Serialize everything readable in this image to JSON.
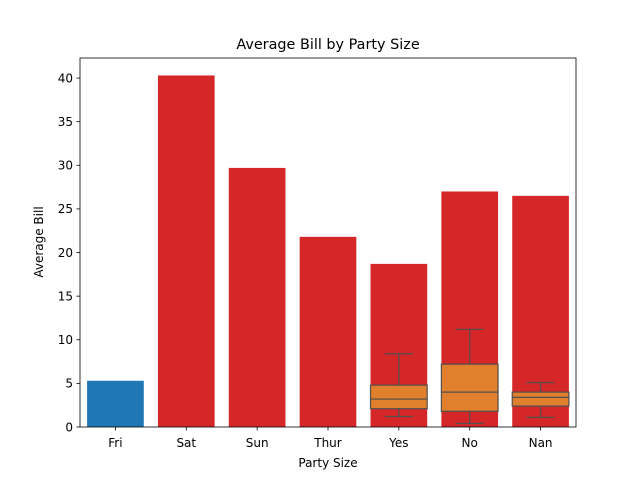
{
  "chart_data": {
    "type": "bar",
    "title": "Average Bill by Party Size",
    "xlabel": "Party Size",
    "ylabel": "Average Bill",
    "categories": [
      "Fri",
      "Sat",
      "Sun",
      "Thur",
      "Yes",
      "No",
      "Nan"
    ],
    "bars": [
      {
        "category": "Fri",
        "value": 5.3,
        "color": "#1f77b4"
      },
      {
        "category": "Sat",
        "value": 40.3,
        "color": "#d62728"
      },
      {
        "category": "Sun",
        "value": 29.7,
        "color": "#d62728"
      },
      {
        "category": "Thur",
        "value": 21.8,
        "color": "#d62728"
      },
      {
        "category": "Yes",
        "value": 18.7,
        "color": "#d62728"
      },
      {
        "category": "No",
        "value": 27.0,
        "color": "#d62728"
      },
      {
        "category": "Nan",
        "value": 26.5,
        "color": "#d62728"
      }
    ],
    "boxplots": [
      {
        "category": "Yes",
        "whisker_low": 1.2,
        "q1": 2.1,
        "median": 3.2,
        "q3": 4.8,
        "whisker_high": 8.4,
        "color": "#e07f2c"
      },
      {
        "category": "No",
        "whisker_low": 0.4,
        "q1": 1.8,
        "median": 4.0,
        "q3": 7.2,
        "whisker_high": 11.2,
        "color": "#e07f2c"
      },
      {
        "category": "Nan",
        "whisker_low": 1.1,
        "q1": 2.4,
        "median": 3.4,
        "q3": 4.0,
        "whisker_high": 5.1,
        "color": "#e07f2c"
      }
    ],
    "ylim": [
      0,
      42.3
    ],
    "yticks": [
      0,
      5,
      10,
      15,
      20,
      25,
      30,
      35,
      40
    ],
    "grid": false,
    "legend": "none"
  }
}
